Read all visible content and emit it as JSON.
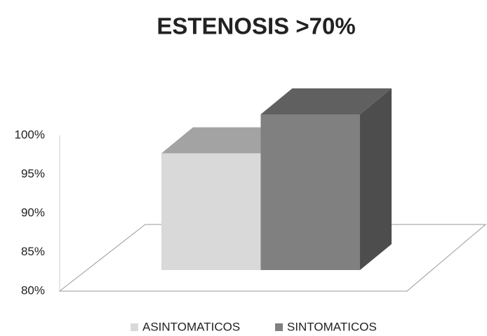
{
  "chart_data": {
    "type": "bar3d",
    "title": "ESTENOSIS >70%",
    "categories": [
      null
    ],
    "series": [
      {
        "name": "ASINTOMATICOS",
        "color": "#d9d9d9",
        "values": [
          95
        ]
      },
      {
        "name": "SINTOMATICOS",
        "color": "#808080",
        "values": [
          100
        ]
      }
    ],
    "ylim": [
      80,
      100
    ],
    "yticks": [
      {
        "value": 80,
        "label": "80%"
      },
      {
        "value": 85,
        "label": "85%"
      },
      {
        "value": 90,
        "label": "90%"
      },
      {
        "value": 95,
        "label": "95%"
      },
      {
        "value": 100,
        "label": "100%"
      }
    ],
    "legend": "bottom"
  }
}
